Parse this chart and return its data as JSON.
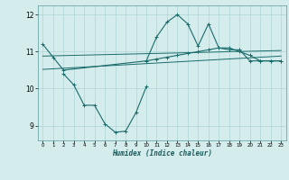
{
  "title": "",
  "xlabel": "Humidex (Indice chaleur)",
  "ylabel": "",
  "x_values": [
    0,
    1,
    2,
    3,
    4,
    5,
    6,
    7,
    8,
    9,
    10,
    11,
    12,
    13,
    14,
    15,
    16,
    17,
    18,
    19,
    20,
    21,
    22,
    23
  ],
  "line1": [
    11.2,
    10.85,
    10.5,
    null,
    null,
    null,
    null,
    null,
    null,
    null,
    10.75,
    10.8,
    10.85,
    10.9,
    10.95,
    11.0,
    11.05,
    11.1,
    11.1,
    11.0,
    10.9,
    10.75,
    10.75,
    10.75
  ],
  "line2": [
    null,
    null,
    10.4,
    10.1,
    9.55,
    9.55,
    9.05,
    8.82,
    8.85,
    9.35,
    10.05,
    null,
    null,
    null,
    null,
    null,
    null,
    null,
    null,
    null,
    null,
    null,
    null,
    null
  ],
  "line3": [
    null,
    null,
    null,
    null,
    null,
    null,
    null,
    null,
    null,
    null,
    10.75,
    11.4,
    11.8,
    12.0,
    11.75,
    11.15,
    11.75,
    11.1,
    11.05,
    11.05,
    10.75,
    10.75,
    10.75,
    10.75
  ],
  "line4_x": [
    0,
    23
  ],
  "line4_y": [
    10.88,
    11.03
  ],
  "line5_x": [
    0,
    23
  ],
  "line5_y": [
    10.52,
    10.88
  ],
  "bg_color": "#d4ecec",
  "line_color": "#1a6b6b",
  "grid_color": "#aed4d4",
  "ylim": [
    8.6,
    12.25
  ],
  "xlim": [
    -0.5,
    23.5
  ],
  "yticks": [
    9,
    10,
    11,
    12
  ],
  "xticks": [
    0,
    1,
    2,
    3,
    4,
    5,
    6,
    7,
    8,
    9,
    10,
    11,
    12,
    13,
    14,
    15,
    16,
    17,
    18,
    19,
    20,
    21,
    22,
    23
  ]
}
